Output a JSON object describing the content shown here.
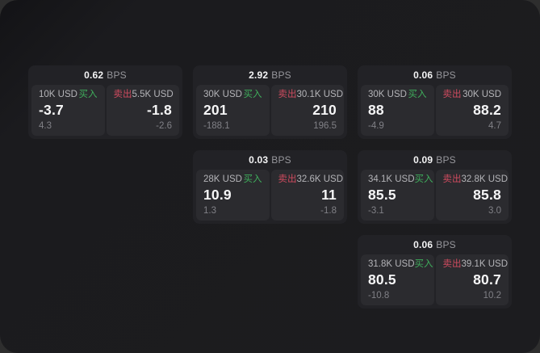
{
  "labels": {
    "bps": "BPS",
    "buy": "买入",
    "sell": "卖出"
  },
  "colors": {
    "window_background": "#1c1c1f",
    "card_background": "#222226",
    "panel_background": "#2b2b2f",
    "buy_green": "#3fae5c",
    "sell_red": "#cf4b5f"
  },
  "cards": [
    {
      "bps": "0.62",
      "grid": {
        "col": 1,
        "row": 1
      },
      "buy": {
        "size": "10K USD",
        "value": "-3.7",
        "change": "4.3"
      },
      "sell": {
        "size": "5.5K USD",
        "value": "-1.8",
        "change": "-2.6"
      }
    },
    {
      "bps": "2.92",
      "grid": {
        "col": 2,
        "row": 1
      },
      "buy": {
        "size": "30K USD",
        "value": "201",
        "change": "-188.1"
      },
      "sell": {
        "size": "30.1K USD",
        "value": "210",
        "change": "196.5"
      }
    },
    {
      "bps": "0.06",
      "grid": {
        "col": 3,
        "row": 1
      },
      "buy": {
        "size": "30K USD",
        "value": "88",
        "change": "-4.9"
      },
      "sell": {
        "size": "30K USD",
        "value": "88.2",
        "change": "4.7"
      }
    },
    {
      "bps": "0.03",
      "grid": {
        "col": 2,
        "row": 2
      },
      "buy": {
        "size": "28K USD",
        "value": "10.9",
        "change": "1.3"
      },
      "sell": {
        "size": "32.6K USD",
        "value": "11",
        "change": "-1.8"
      }
    },
    {
      "bps": "0.09",
      "grid": {
        "col": 3,
        "row": 2
      },
      "buy": {
        "size": "34.1K USD",
        "value": "85.5",
        "change": "-3.1"
      },
      "sell": {
        "size": "32.8K USD",
        "value": "85.8",
        "change": "3.0"
      }
    },
    {
      "bps": "0.06",
      "grid": {
        "col": 3,
        "row": 3
      },
      "buy": {
        "size": "31.8K USD",
        "value": "80.5",
        "change": "-10.8"
      },
      "sell": {
        "size": "39.1K USD",
        "value": "80.7",
        "change": "10.2"
      }
    }
  ]
}
